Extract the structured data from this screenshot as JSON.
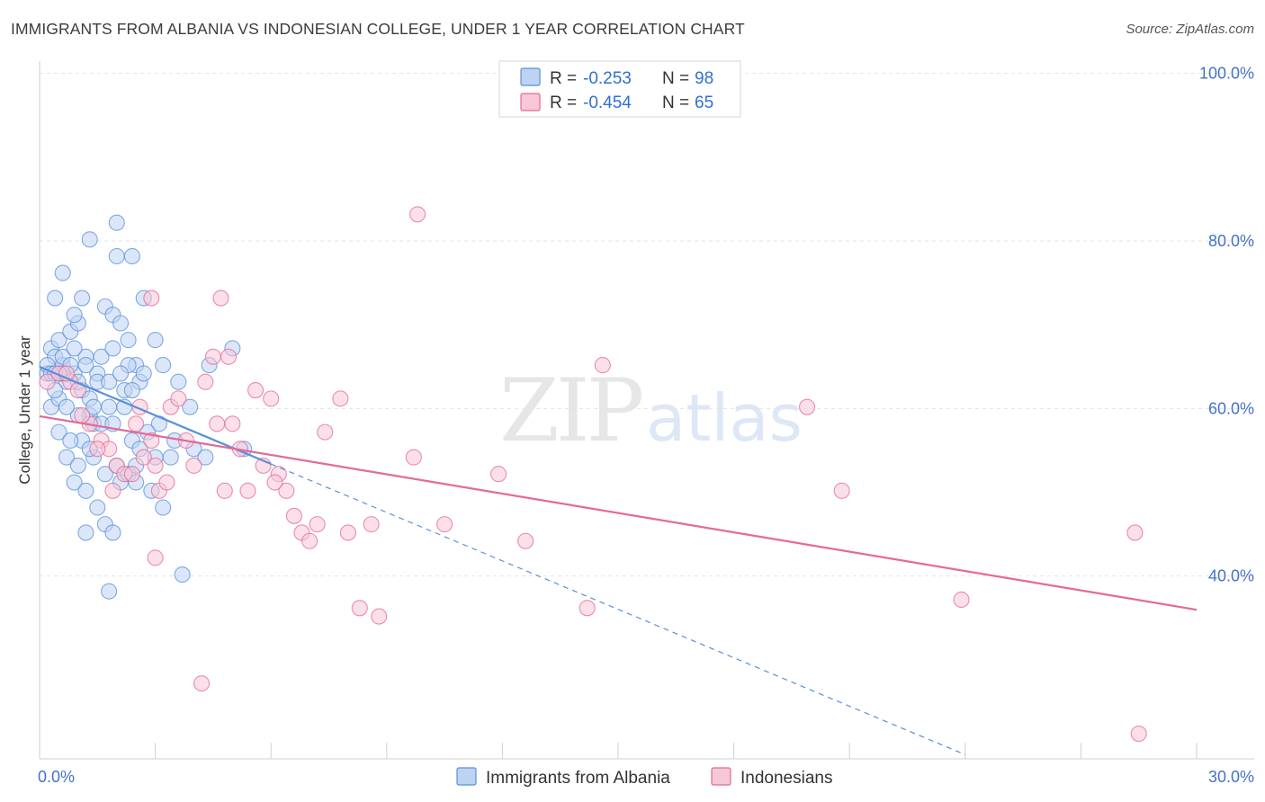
{
  "header": {
    "title": "IMMIGRANTS FROM ALBANIA VS INDONESIAN COLLEGE, UNDER 1 YEAR CORRELATION CHART",
    "source": "Source: ZipAtlas.com"
  },
  "watermark": {
    "zip": "ZIP",
    "atlas": "atlas"
  },
  "chart_data": {
    "type": "scatter",
    "title": "IMMIGRANTS FROM ALBANIA VS INDONESIAN COLLEGE, UNDER 1 YEAR CORRELATION CHART",
    "xlabel": "",
    "ylabel": "College, Under 1 year",
    "xlim": [
      0,
      30
    ],
    "ylim": [
      20,
      102
    ],
    "x_tick_labels": {
      "min": "0.0%",
      "max": "30.0%"
    },
    "y_ticks": [
      {
        "value": 100,
        "label": "100.0%"
      },
      {
        "value": 80,
        "label": "80.0%"
      },
      {
        "value": 60,
        "label": "60.0%"
      },
      {
        "value": 40,
        "label": "40.0%"
      }
    ],
    "grid": true,
    "legend_position": "top-center",
    "stats": [
      {
        "r_label": "R = ",
        "r_value": "-0.253",
        "n_label": "N = ",
        "n_value": "98"
      },
      {
        "r_label": "R = ",
        "r_value": "-0.454",
        "n_label": "N = ",
        "n_value": "65"
      }
    ],
    "series": [
      {
        "name": "Immigrants from Albania",
        "color": "#5b8fd9",
        "fill": "#bdd3f3",
        "trend": {
          "x0": 0,
          "y0": 66.8,
          "x1": 6.0,
          "y1": 55.2,
          "dash_to_x": 24,
          "dash_to_y": 20.5
        },
        "points": [
          [
            0.2,
            66
          ],
          [
            0.3,
            69
          ],
          [
            0.4,
            68
          ],
          [
            0.5,
            70
          ],
          [
            0.6,
            67
          ],
          [
            0.7,
            65
          ],
          [
            0.3,
            62
          ],
          [
            0.5,
            63
          ],
          [
            0.8,
            71
          ],
          [
            0.9,
            66
          ],
          [
            1.0,
            72
          ],
          [
            1.1,
            64
          ],
          [
            1.2,
            68
          ],
          [
            1.3,
            61
          ],
          [
            1.4,
            60
          ],
          [
            1.5,
            66
          ],
          [
            0.4,
            75
          ],
          [
            0.6,
            78
          ],
          [
            0.9,
            73
          ],
          [
            1.7,
            74
          ],
          [
            1.9,
            73
          ],
          [
            2.1,
            72
          ],
          [
            2.3,
            70
          ],
          [
            2.5,
            67
          ],
          [
            2.7,
            75
          ],
          [
            3.0,
            70
          ],
          [
            3.2,
            67
          ],
          [
            1.3,
            82
          ],
          [
            2.0,
            84
          ],
          [
            2.4,
            80
          ],
          [
            2.0,
            80
          ],
          [
            0.7,
            56
          ],
          [
            0.9,
            53
          ],
          [
            1.0,
            55
          ],
          [
            1.2,
            52
          ],
          [
            1.5,
            50
          ],
          [
            1.7,
            48
          ],
          [
            1.9,
            47
          ],
          [
            2.1,
            53
          ],
          [
            2.3,
            54
          ],
          [
            2.5,
            55
          ],
          [
            2.9,
            52
          ],
          [
            3.2,
            50
          ],
          [
            1.2,
            47
          ],
          [
            1.8,
            40
          ],
          [
            3.7,
            42
          ],
          [
            3.5,
            58
          ],
          [
            4.0,
            57
          ],
          [
            4.3,
            56
          ],
          [
            5.3,
            57
          ],
          [
            1.0,
            61
          ],
          [
            1.3,
            63
          ],
          [
            1.6,
            60
          ],
          [
            1.9,
            60
          ],
          [
            2.2,
            62
          ],
          [
            2.4,
            58
          ],
          [
            2.6,
            57
          ],
          [
            1.1,
            58
          ],
          [
            1.4,
            56
          ],
          [
            0.6,
            68
          ],
          [
            0.8,
            67
          ],
          [
            0.7,
            62
          ],
          [
            1.0,
            65
          ],
          [
            0.2,
            67
          ],
          [
            0.4,
            64
          ],
          [
            0.5,
            66
          ],
          [
            1.2,
            67
          ],
          [
            1.5,
            65
          ],
          [
            1.8,
            62
          ],
          [
            2.2,
            64
          ],
          [
            2.6,
            65
          ],
          [
            3.1,
            60
          ],
          [
            3.4,
            56
          ],
          [
            3.6,
            65
          ],
          [
            3.9,
            62
          ],
          [
            1.6,
            68
          ],
          [
            1.9,
            69
          ],
          [
            2.3,
            67
          ],
          [
            2.7,
            66
          ],
          [
            1.1,
            75
          ],
          [
            0.9,
            69
          ],
          [
            0.6,
            66
          ],
          [
            0.3,
            66
          ],
          [
            0.5,
            59
          ],
          [
            0.8,
            58
          ],
          [
            1.3,
            57
          ],
          [
            1.7,
            54
          ],
          [
            2.0,
            55
          ],
          [
            2.5,
            53
          ],
          [
            3.0,
            56
          ],
          [
            1.4,
            62
          ],
          [
            1.8,
            65
          ],
          [
            2.1,
            66
          ],
          [
            2.4,
            64
          ],
          [
            5.0,
            69
          ],
          [
            4.4,
            67
          ],
          [
            2.8,
            59
          ],
          [
            0.4,
            66
          ]
        ]
      },
      {
        "name": "Indonesians",
        "color": "#e36a96",
        "fill": "#f7c6d7",
        "trend": {
          "x0": 0,
          "y0": 60.9,
          "x1": 30,
          "y1": 37.8
        },
        "points": [
          [
            0.2,
            65
          ],
          [
            0.5,
            66
          ],
          [
            0.8,
            65
          ],
          [
            1.0,
            64
          ],
          [
            1.3,
            60
          ],
          [
            1.6,
            58
          ],
          [
            1.8,
            57
          ],
          [
            2.0,
            55
          ],
          [
            2.2,
            54
          ],
          [
            2.5,
            60
          ],
          [
            2.7,
            56
          ],
          [
            2.9,
            58
          ],
          [
            3.1,
            52
          ],
          [
            3.4,
            62
          ],
          [
            3.6,
            63
          ],
          [
            3.8,
            58
          ],
          [
            4.0,
            55
          ],
          [
            4.3,
            65
          ],
          [
            4.6,
            60
          ],
          [
            4.8,
            52
          ],
          [
            5.0,
            60
          ],
          [
            5.2,
            57
          ],
          [
            5.4,
            52
          ],
          [
            5.6,
            64
          ],
          [
            5.8,
            55
          ],
          [
            6.0,
            63
          ],
          [
            6.2,
            54
          ],
          [
            6.4,
            52
          ],
          [
            6.6,
            49
          ],
          [
            6.8,
            47
          ],
          [
            7.0,
            46
          ],
          [
            7.2,
            48
          ],
          [
            7.4,
            59
          ],
          [
            7.8,
            63
          ],
          [
            8.0,
            47
          ],
          [
            8.3,
            38
          ],
          [
            8.6,
            48
          ],
          [
            8.8,
            37
          ],
          [
            9.7,
            56
          ],
          [
            10.5,
            48
          ],
          [
            11.9,
            54
          ],
          [
            12.6,
            46
          ],
          [
            14.2,
            38
          ],
          [
            14.6,
            67
          ],
          [
            19.9,
            62
          ],
          [
            20.8,
            52
          ],
          [
            23.9,
            39
          ],
          [
            28.4,
            47
          ],
          [
            28.5,
            23
          ],
          [
            9.8,
            85
          ],
          [
            2.9,
            75
          ],
          [
            4.7,
            75
          ],
          [
            4.5,
            68
          ],
          [
            4.9,
            68
          ],
          [
            1.5,
            57
          ],
          [
            1.9,
            52
          ],
          [
            2.6,
            62
          ],
          [
            3.0,
            55
          ],
          [
            3.3,
            53
          ],
          [
            2.4,
            54
          ],
          [
            3.0,
            44
          ],
          [
            4.2,
            29
          ],
          [
            0.7,
            66
          ],
          [
            1.1,
            61
          ],
          [
            6.1,
            53
          ]
        ]
      }
    ]
  }
}
